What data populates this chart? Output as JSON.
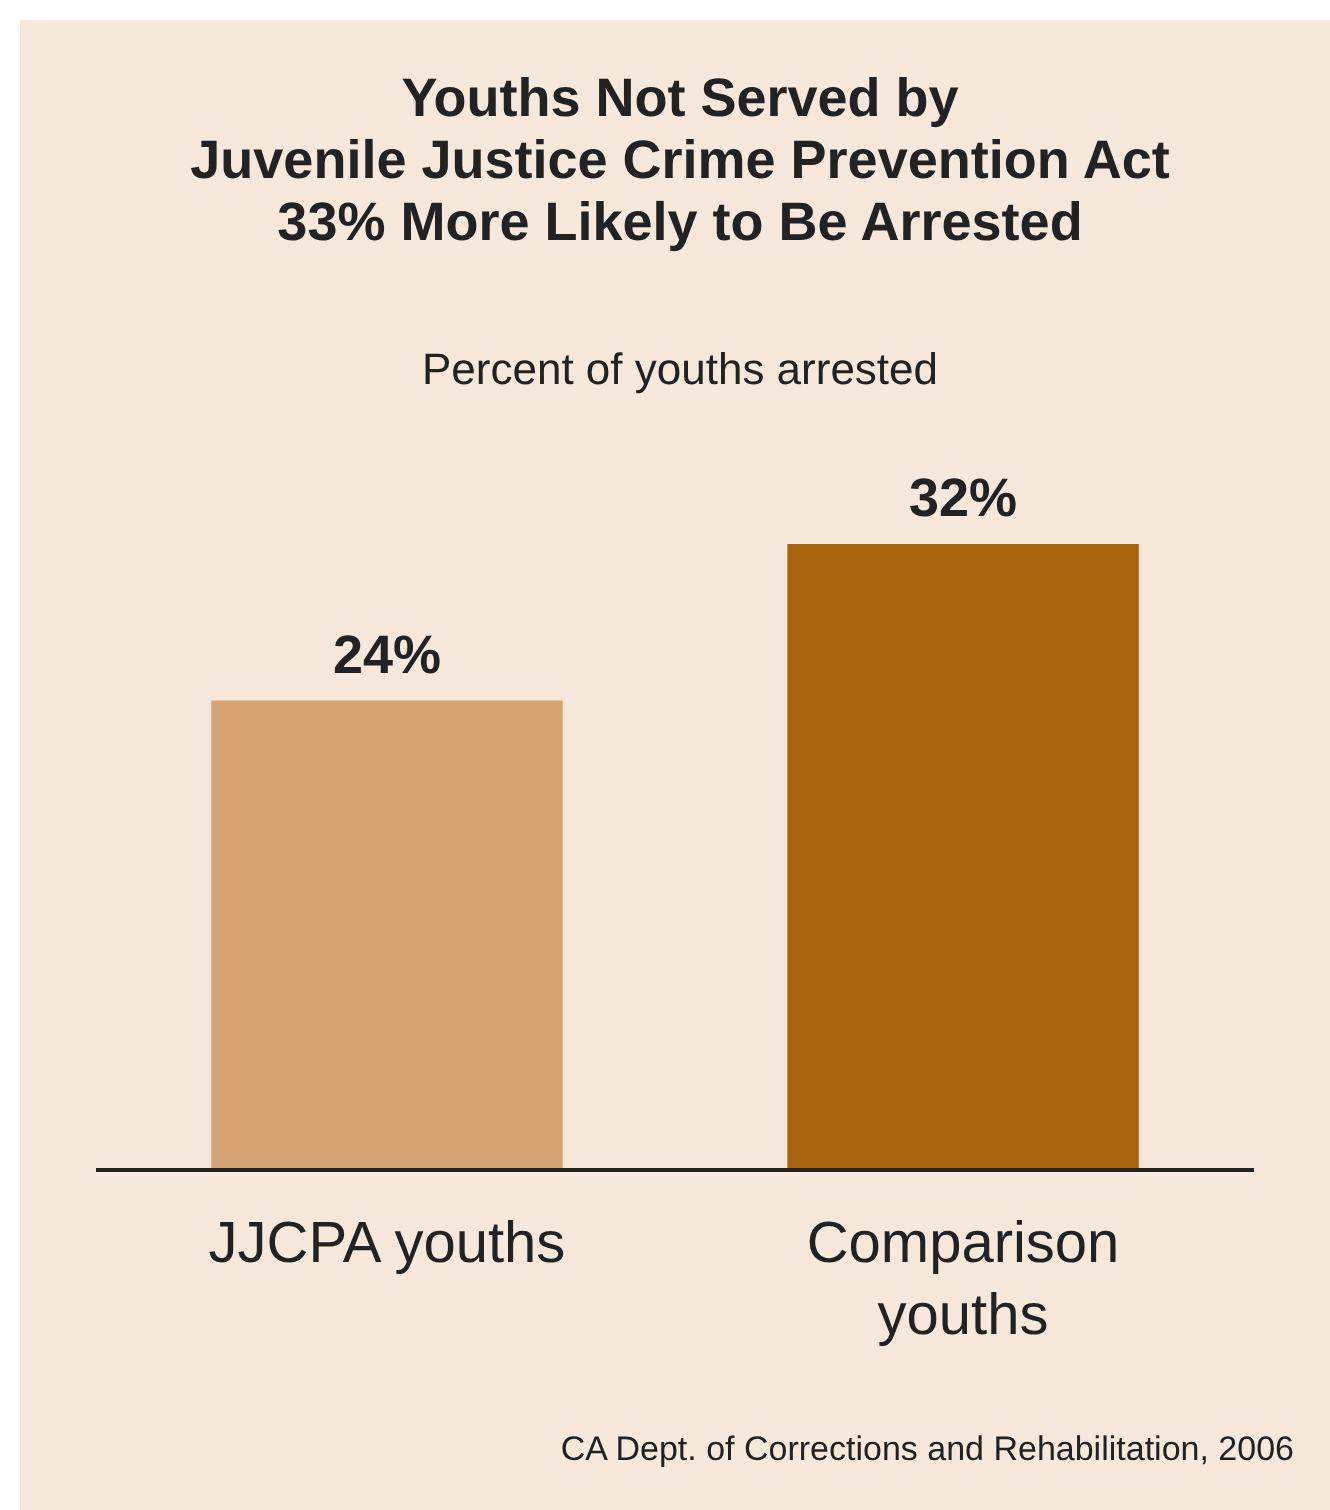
{
  "chart_data": {
    "type": "bar",
    "title": "Youths Not Served by\nJuvenile Justice Crime Prevention Act\n33% More Likely to Be Arrested",
    "subtitle": "Percent of youths arrested",
    "categories": [
      "JJCPA youths",
      "Comparison youths"
    ],
    "values": [
      24,
      32
    ],
    "colors": [
      "#d4a572",
      "#aa640e"
    ],
    "value_labels": [
      "24%",
      "32%"
    ],
    "annotations": [
      "CA Dept. of Corrections and Rehabilitation, 2006"
    ]
  }
}
